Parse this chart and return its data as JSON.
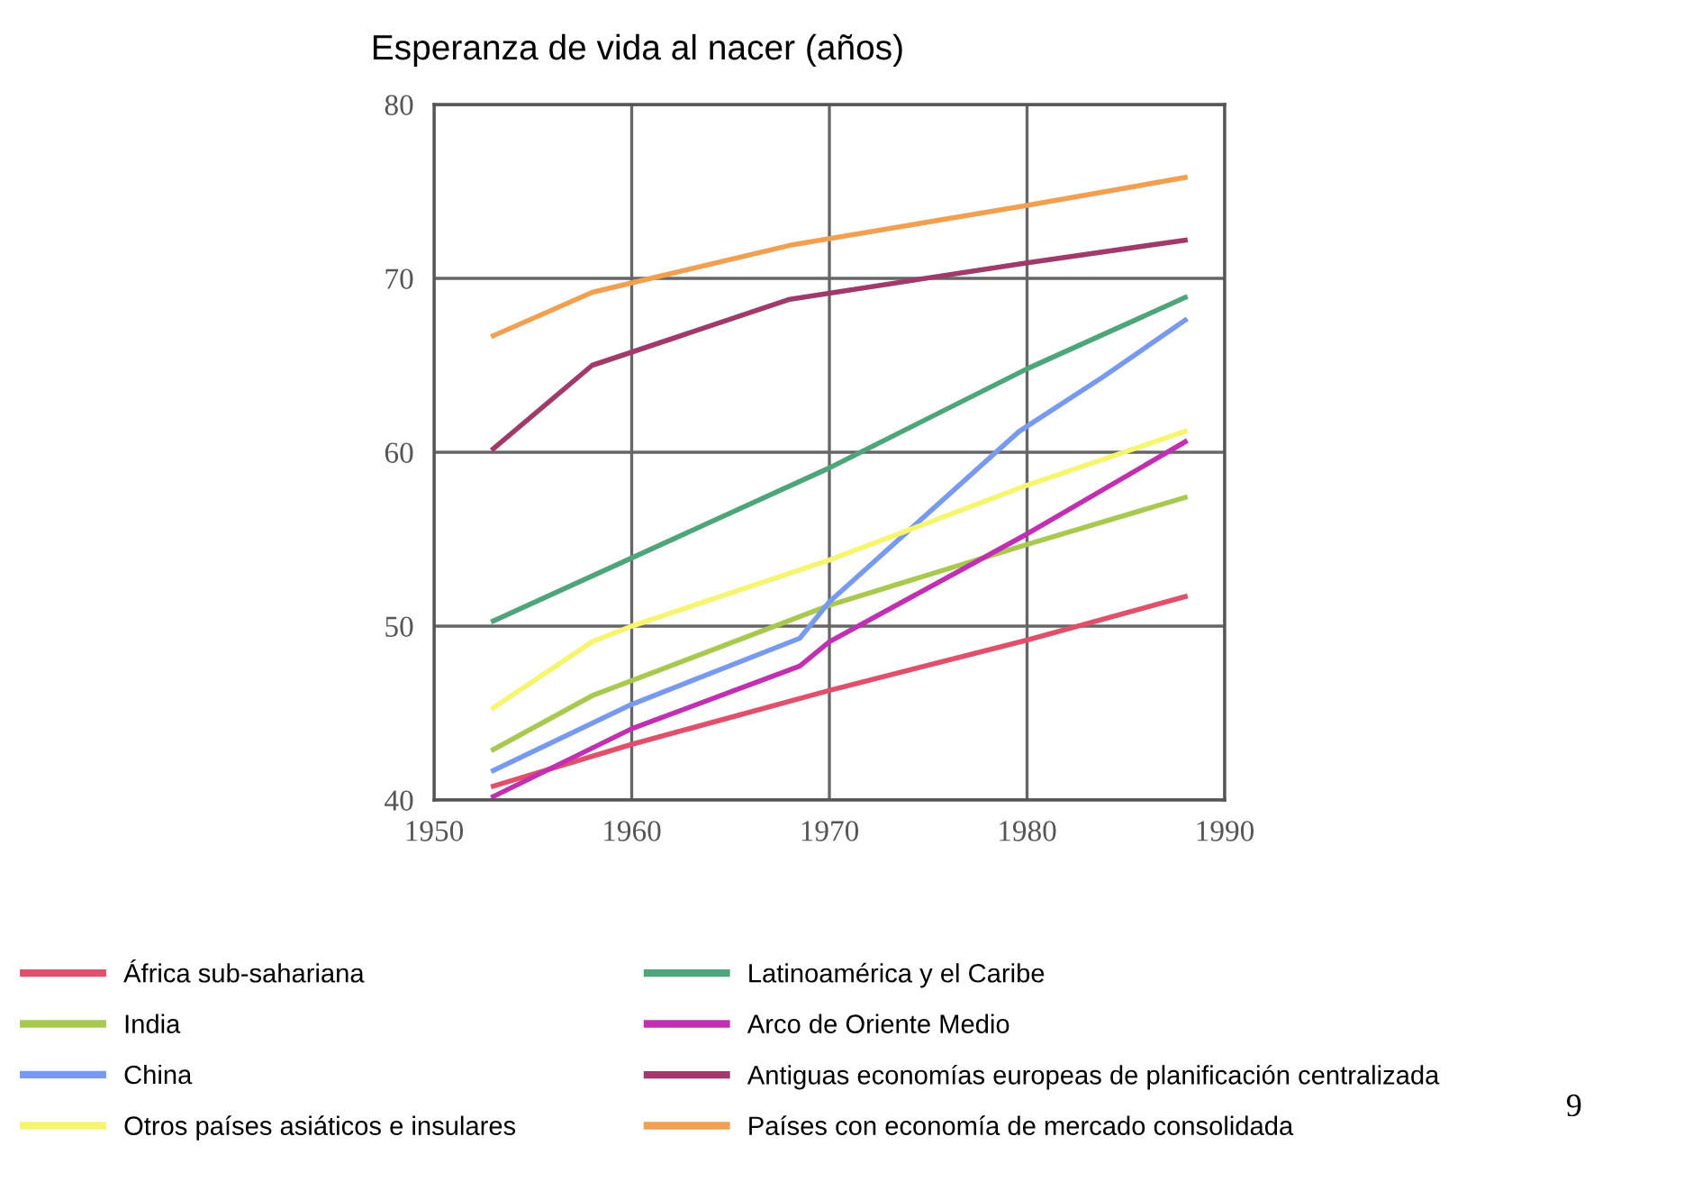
{
  "chart_data": {
    "type": "line",
    "title": "Esperanza de vida al nacer (años)",
    "xlim": [
      1950,
      1990
    ],
    "xticks": [
      1950,
      1960,
      1970,
      1980,
      1990
    ],
    "ylim": [
      40,
      80
    ],
    "yticks": [
      40,
      50,
      60,
      70,
      80
    ],
    "grid": true,
    "legend": "bottom",
    "marker": "none",
    "line_style": "solid",
    "annotations": [
      "9"
    ],
    "series": [
      {
        "name": "África sub-sahariana",
        "color": "#e0506a",
        "x": [
          1953,
          1960,
          1970,
          1980,
          1988
        ],
        "values": [
          40.8,
          43.2,
          46.3,
          49.2,
          51.7
        ]
      },
      {
        "name": "India",
        "color": "#a8c850",
        "x": [
          1953,
          1958,
          1970,
          1980,
          1988
        ],
        "values": [
          42.9,
          46.0,
          51.2,
          54.7,
          57.4
        ]
      },
      {
        "name": "China",
        "color": "#7799ee",
        "x": [
          1953,
          1960,
          1968.5,
          1970,
          1979.6,
          1983.8,
          1988
        ],
        "values": [
          41.7,
          45.5,
          49.3,
          51.4,
          61.2,
          64.3,
          67.6
        ]
      },
      {
        "name": "Otros países asiáticos e insulares",
        "color": "#f5f570",
        "x": [
          1953,
          1958,
          1960,
          1970,
          1980,
          1988
        ],
        "values": [
          45.3,
          49.1,
          50.0,
          53.8,
          58.1,
          61.2
        ]
      },
      {
        "name": "Latinoamérica y el Caribe",
        "color": "#4fa57a",
        "x": [
          1953,
          1970,
          1980,
          1988
        ],
        "values": [
          50.3,
          59.1,
          64.8,
          68.9
        ]
      },
      {
        "name": "Arco de Oriente Medio",
        "color": "#c030b0",
        "x": [
          1953,
          1960,
          1968.5,
          1970,
          1980,
          1988
        ],
        "values": [
          40.2,
          44.1,
          47.7,
          49.1,
          55.3,
          60.6
        ]
      },
      {
        "name": "Antiguas economías europeas de planificación centralizada",
        "color": "#a03a6a",
        "x": [
          1953,
          1958,
          1968,
          1980,
          1988
        ],
        "values": [
          60.2,
          65.0,
          68.8,
          70.9,
          72.2
        ]
      },
      {
        "name": "Países con economía de mercado consolidada",
        "color": "#f0a050",
        "x": [
          1953,
          1958,
          1968,
          1980,
          1988
        ],
        "values": [
          66.7,
          69.2,
          71.9,
          74.2,
          75.8
        ]
      }
    ]
  }
}
